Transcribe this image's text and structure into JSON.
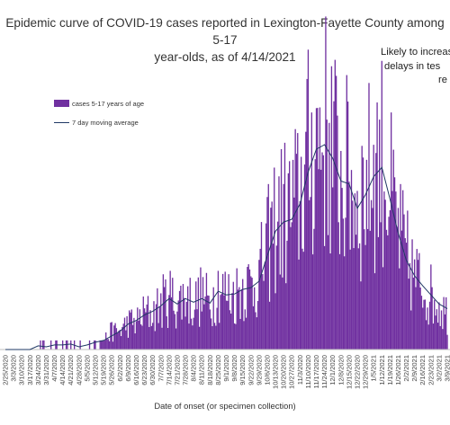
{
  "chart_data": {
    "type": "bar",
    "title": "Epidemic curve of COVID-19 cases reported in Lexington-Fayette County among 5-17 year-olds, as of 4/14/2021",
    "title_lines": [
      "Epidemic curve of COVID-19 cases reported in Lexington-Fayette County among 5-17",
      "year-olds, as of 4/14/2021"
    ],
    "annotation_lines": [
      "Likely to increase",
      "delays in tes",
      "re"
    ],
    "xlabel": "Date of onset (or specimen collection)",
    "ylabel": "",
    "x_tick_labels": [
      "2/25/2020",
      "3/3/2020",
      "3/10/2020",
      "3/17/2020",
      "3/24/2020",
      "3/31/2020",
      "4/7/2020",
      "4/14/2020",
      "4/21/2020",
      "4/28/2020",
      "5/5/2020",
      "5/12/2020",
      "5/19/2020",
      "5/26/2020",
      "6/2/2020",
      "6/9/2020",
      "6/16/2020",
      "6/23/2020",
      "6/30/2020",
      "7/7/2020",
      "7/14/2020",
      "7/21/2020",
      "7/28/2020",
      "8/4/2020",
      "8/11/2020",
      "8/18/2020",
      "8/25/2020",
      "9/1/2020",
      "9/8/2020",
      "9/15/2020",
      "9/22/2020",
      "9/29/2020",
      "10/6/2020",
      "10/13/2020",
      "10/20/2020",
      "10/27/2020",
      "11/3/2020",
      "11/10/2020",
      "11/17/2020",
      "11/24/2020",
      "12/1/2020",
      "12/8/2020",
      "12/15/2020",
      "12/22/2020",
      "12/29/2020",
      "1/5/2021",
      "1/12/2021",
      "1/19/2021",
      "1/26/2021",
      "2/2/2021",
      "2/9/2021",
      "2/16/2021",
      "2/23/2021",
      "3/2/2021",
      "3/9/2021"
    ],
    "ylim": [
      0,
      30
    ],
    "grid": false,
    "legend_position": "top-left",
    "series": [
      {
        "name": "cases 5-17 years of age",
        "kind": "bar",
        "color": "#7030a0",
        "weekly_values": [
          0,
          0,
          0,
          0,
          1,
          0,
          1,
          0.5,
          1,
          0,
          0.5,
          1,
          1,
          2,
          2,
          3,
          3,
          4,
          4,
          5,
          6,
          5,
          6,
          5,
          6,
          5,
          7,
          6,
          6,
          7,
          7,
          8,
          11,
          14,
          15,
          15,
          17,
          21,
          23,
          24,
          22,
          19,
          19,
          16,
          18,
          20,
          21,
          17,
          13,
          10,
          8,
          7,
          6,
          5,
          4
        ]
      },
      {
        "name": "7 day moving average",
        "kind": "line",
        "color": "#1f3864",
        "weekly_values": [
          0,
          0,
          0,
          0,
          0.4,
          0.3,
          0.5,
          0.5,
          0.6,
          0.3,
          0.5,
          0.8,
          1,
          1.5,
          2,
          2.8,
          3.2,
          3.8,
          4.2,
          4.8,
          5.6,
          5,
          5.6,
          5.2,
          5.6,
          5.1,
          6.4,
          6,
          6.1,
          6.6,
          6.8,
          7.5,
          10.3,
          13,
          14,
          14.3,
          16,
          19.5,
          22,
          22.5,
          21,
          18.5,
          18.2,
          15.5,
          17,
          19,
          20,
          16.5,
          12.8,
          9.8,
          8.1,
          7,
          6,
          5,
          4.5
        ]
      }
    ]
  }
}
